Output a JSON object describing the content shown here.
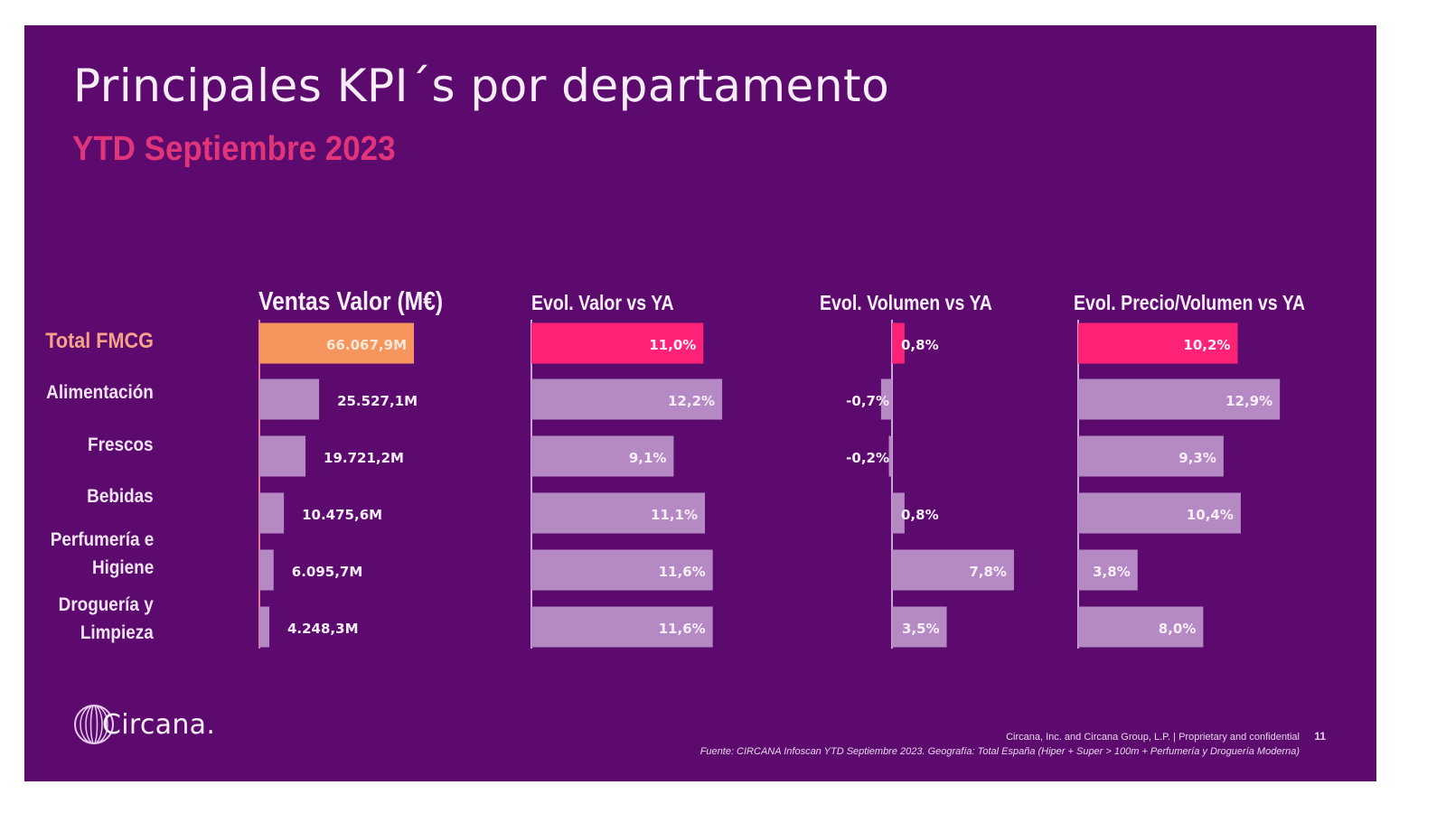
{
  "slide": {
    "title": "Principales KPI´s por departamento",
    "subtitle": "YTD Septiembre 2023",
    "logo_text": "Circana.",
    "footer_copyright": "Circana, Inc. and Circana Group, L.P. | Proprietary and confidential",
    "footer_source": "Fuente: CIRCANA Infoscan YTD Septiembre 2023. Geografía: Total España (Hiper + Super > 100m + Perfumería y Droguería Moderna)",
    "page_number": "11"
  },
  "colors": {
    "background": "#5c0a6e",
    "total_sales_bar": "#f7955f",
    "total_pct_bar": "#ff2277",
    "department_bar": "#b589c4",
    "subtitle": "#e0357a",
    "total_label": "#f7a08a"
  },
  "chart_data": [
    {
      "type": "bar",
      "orientation": "horizontal",
      "title": "Ventas Valor (M€)",
      "categories": [
        "Total FMCG",
        "Alimentación",
        "Frescos",
        "Bebidas",
        "Perfumería e Higiene",
        "Droguería y Limpieza"
      ],
      "values": [
        66067.9,
        25527.1,
        19721.2,
        10475.6,
        6095.7,
        4248.3
      ],
      "labels": [
        "66.067,9M",
        "25.527,1M",
        "19.721,2M",
        "10.475,6M",
        "6.095,7M",
        "4.248,3M"
      ],
      "unit": "M€",
      "highlight_index": 0,
      "grid": false
    },
    {
      "type": "bar",
      "orientation": "horizontal",
      "title": "Evol. Valor vs YA",
      "categories": [
        "Total FMCG",
        "Alimentación",
        "Frescos",
        "Bebidas",
        "Perfumería e Higiene",
        "Droguería y Limpieza"
      ],
      "values": [
        11.0,
        12.2,
        9.1,
        11.1,
        11.6,
        11.6
      ],
      "labels": [
        "11,0%",
        "12,2%",
        "9,1%",
        "11,1%",
        "11,6%",
        "11,6%"
      ],
      "unit": "%",
      "highlight_index": 0,
      "grid": false
    },
    {
      "type": "bar",
      "orientation": "horizontal",
      "title": "Evol. Volumen vs YA",
      "categories": [
        "Total FMCG",
        "Alimentación",
        "Frescos",
        "Bebidas",
        "Perfumería e Higiene",
        "Droguería y Limpieza"
      ],
      "values": [
        0.8,
        -0.7,
        -0.2,
        0.8,
        7.8,
        3.5
      ],
      "labels": [
        "0,8%",
        "-0,7%",
        "-0,2%",
        "0,8%",
        "7,8%",
        "3,5%"
      ],
      "unit": "%",
      "highlight_index": 0,
      "grid": false
    },
    {
      "type": "bar",
      "orientation": "horizontal",
      "title": "Evol. Precio/Volumen vs YA",
      "categories": [
        "Total FMCG",
        "Alimentación",
        "Frescos",
        "Bebidas",
        "Perfumería e Higiene",
        "Droguería y Limpieza"
      ],
      "values": [
        10.2,
        12.9,
        9.3,
        10.4,
        3.8,
        8.0
      ],
      "labels": [
        "10,2%",
        "12,9%",
        "9,3%",
        "10,4%",
        "3,8%",
        "8,0%"
      ],
      "unit": "%",
      "highlight_index": 0,
      "grid": false
    }
  ],
  "row_labels": [
    {
      "line1": "Total FMCG",
      "line2": ""
    },
    {
      "line1": "Alimentación",
      "line2": ""
    },
    {
      "line1": "Frescos",
      "line2": ""
    },
    {
      "line1": "Bebidas",
      "line2": ""
    },
    {
      "line1": "Perfumería e",
      "line2": "Higiene"
    },
    {
      "line1": "Droguería y",
      "line2": "Limpieza"
    }
  ]
}
